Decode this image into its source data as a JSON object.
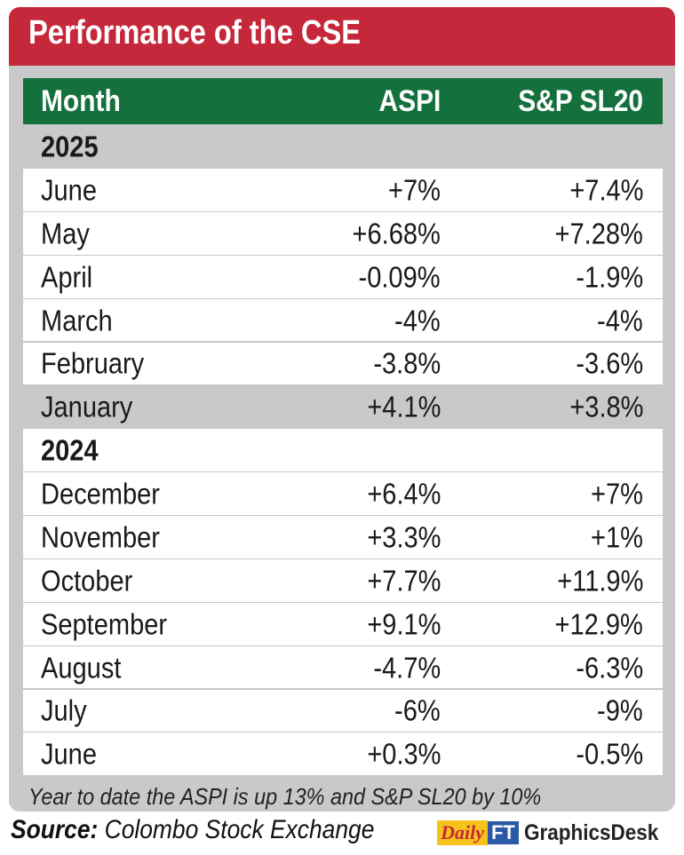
{
  "title": "Performance of the CSE",
  "chart_data": {
    "type": "table",
    "columns": [
      "Month",
      "ASPI",
      "S&P SL20"
    ],
    "groups": [
      {
        "year": "2025",
        "rows": [
          {
            "month": "June",
            "aspi": "+7%",
            "sp_sl20": "+7.4%"
          },
          {
            "month": "May",
            "aspi": "+6.68%",
            "sp_sl20": "+7.28%"
          },
          {
            "month": "April",
            "aspi": "-0.09%",
            "sp_sl20": "-1.9%"
          },
          {
            "month": "March",
            "aspi": "-4%",
            "sp_sl20": "-4%"
          },
          {
            "month": "February",
            "aspi": "-3.8%",
            "sp_sl20": "-3.6%"
          },
          {
            "month": "January",
            "aspi": "+4.1%",
            "sp_sl20": "+3.8%"
          }
        ]
      },
      {
        "year": "2024",
        "rows": [
          {
            "month": "December",
            "aspi": "+6.4%",
            "sp_sl20": "+7%"
          },
          {
            "month": "November",
            "aspi": "+3.3%",
            "sp_sl20": "+1%"
          },
          {
            "month": "October",
            "aspi": "+7.7%",
            "sp_sl20": "+11.9%"
          },
          {
            "month": "September",
            "aspi": "+9.1%",
            "sp_sl20": "+12.9%"
          },
          {
            "month": "August",
            "aspi": "-4.7%",
            "sp_sl20": "-6.3%"
          },
          {
            "month": "July",
            "aspi": "-6%",
            "sp_sl20": "-9%"
          },
          {
            "month": "June",
            "aspi": "+0.3%",
            "sp_sl20": "-0.5%"
          }
        ]
      }
    ]
  },
  "footnote": "Year to date the ASPI is up 13%  and S&P SL20 by 10%",
  "source": {
    "label": "Source:",
    "text": "Colombo Stock Exchange"
  },
  "brand": {
    "daily": "Daily",
    "ft": "FT",
    "desk": "GraphicsDesk"
  },
  "colors": {
    "title_bar": "#c4283a",
    "header_bar": "#14703c",
    "panel_grey": "#c9c9c9"
  }
}
